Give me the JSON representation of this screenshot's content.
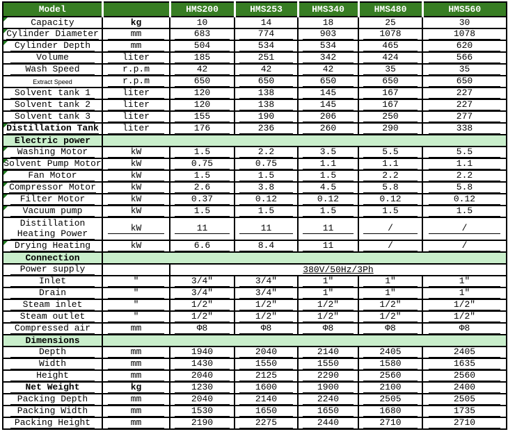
{
  "colors": {
    "header_bg": "#377d23",
    "header_text": "#ffffff",
    "section_bg": "#c9eecb",
    "flag": "#1f7a1f",
    "border": "#000000",
    "text": "#000000"
  },
  "table": {
    "header": {
      "cells": [
        "Model",
        "",
        "HMS200",
        "HMS253",
        "HMS340",
        "HMS480",
        "HMS560"
      ]
    },
    "rows": [
      {
        "label": "Capacity",
        "unit": "kg",
        "unit_bold": true,
        "values": [
          "10",
          "14",
          "18",
          "25",
          "30"
        ],
        "u": false,
        "flag": true
      },
      {
        "label": "Cylinder Diameter",
        "unit": "mm",
        "values": [
          "683",
          "774",
          "903",
          "1078",
          "1078"
        ],
        "u": true,
        "flag": true
      },
      {
        "label": "Cylinder Depth",
        "unit": "mm",
        "values": [
          "504",
          "534",
          "534",
          "465",
          "620"
        ],
        "u": true,
        "flag": true
      },
      {
        "label": "Volume",
        "unit": "liter",
        "values": [
          "185",
          "251",
          "342",
          "424",
          "566"
        ],
        "u": true
      },
      {
        "label": "Wash Speed",
        "unit": "r.p.m",
        "values": [
          "42",
          "42",
          "42",
          "35",
          "35"
        ],
        "u": true
      },
      {
        "label": "Extract Speed",
        "small_label": true,
        "unit": "r.p.m",
        "values": [
          "650",
          "650",
          "650",
          "650",
          "650"
        ],
        "u": true
      },
      {
        "label": "Solvent tank 1",
        "unit": "liter",
        "values": [
          "120",
          "138",
          "145",
          "167",
          "227"
        ],
        "u": true
      },
      {
        "label": "Solvent tank 2",
        "unit": "liter",
        "values": [
          "120",
          "138",
          "145",
          "167",
          "227"
        ],
        "u": true
      },
      {
        "label": "Solvent tank 3",
        "unit": "liter",
        "values": [
          "155",
          "190",
          "206",
          "250",
          "277"
        ],
        "u": true
      },
      {
        "label": "Distillation Tank",
        "label_bold": true,
        "unit": "liter",
        "values": [
          "176",
          "236",
          "260",
          "290",
          "338"
        ],
        "u": true,
        "flag": true
      },
      {
        "section": "Electric power"
      },
      {
        "label": "Washing Motor",
        "unit": "kW",
        "values": [
          "1.5",
          "2.2",
          "3.5",
          "5.5",
          "5.5"
        ],
        "u": true,
        "flag": true
      },
      {
        "label": "Solvent Pump Motor",
        "unit": "kW",
        "values": [
          "0.75",
          "0.75",
          "1.1",
          "1.1",
          "1.1"
        ],
        "u": true,
        "flag": true
      },
      {
        "label": "Fan Motor",
        "unit": "kW",
        "values": [
          "1.5",
          "1.5",
          "1.5",
          "2.2",
          "2.2"
        ],
        "u": true,
        "flag": true
      },
      {
        "label": "Compressor Motor",
        "unit": "kW",
        "values": [
          "2.6",
          "3.8",
          "4.5",
          "5.8",
          "5.8"
        ],
        "u": true,
        "flag": true
      },
      {
        "label": "Filter Motor",
        "unit": "kW",
        "values": [
          "0.37",
          "0.12",
          "0.12",
          "0.12",
          "0.12"
        ],
        "u": true,
        "flag": true
      },
      {
        "label": "Vacuum pump",
        "unit": "kW",
        "values": [
          "1.5",
          "1.5",
          "1.5",
          "1.5",
          "1.5"
        ],
        "u": true,
        "flag": true
      },
      {
        "label": "Distillation\nHeating Power",
        "unit": "kW",
        "values": [
          "11",
          "11",
          "11",
          "/",
          "/"
        ],
        "u": true,
        "tall": true
      },
      {
        "label": "Drying Heating",
        "unit": "kW",
        "values": [
          "6.6",
          "8.4",
          "11",
          "/",
          "/"
        ],
        "u": true,
        "flag": true
      },
      {
        "section": "Connection"
      },
      {
        "label": "Power supply",
        "unit": "",
        "value_span": "380V/50Hz/3Ph",
        "u": true
      },
      {
        "label": "Inlet",
        "unit": "″",
        "values": [
          "3/4″",
          "3/4″",
          "1″",
          "1″",
          "1″"
        ],
        "u": true
      },
      {
        "label": "Drain",
        "unit": "″",
        "values": [
          "3/4″",
          "3/4″",
          "1″",
          "1″",
          "1″"
        ],
        "u": true
      },
      {
        "label": "Steam inlet",
        "unit": "″",
        "values": [
          "1/2″",
          "1/2″",
          "1/2″",
          "1/2″",
          "1/2″"
        ],
        "u": true
      },
      {
        "label": "Steam outlet",
        "unit": "″",
        "values": [
          "1/2″",
          "1/2″",
          "1/2″",
          "1/2″",
          "1/2″"
        ],
        "u": true
      },
      {
        "label": "Compressed air",
        "unit": "mm",
        "values": [
          "Φ8",
          "Φ8",
          "Φ8",
          "Φ8",
          "Φ8"
        ],
        "u": true
      },
      {
        "section": "Dimensions"
      },
      {
        "label": "Depth",
        "unit": "mm",
        "values": [
          "1940",
          "2040",
          "2140",
          "2405",
          "2405"
        ],
        "u": true
      },
      {
        "label": "Width",
        "unit": "mm",
        "values": [
          "1430",
          "1550",
          "1550",
          "1580",
          "1635"
        ],
        "u": true
      },
      {
        "label": "Height",
        "unit": "mm",
        "values": [
          "2040",
          "2125",
          "2290",
          "2560",
          "2560"
        ],
        "u": true
      },
      {
        "label": "Net Weight",
        "label_bold": true,
        "unit": "kg",
        "unit_bold": true,
        "values": [
          "1230",
          "1600",
          "1900",
          "2100",
          "2400"
        ],
        "u": true
      },
      {
        "label": "Packing Depth",
        "unit": "mm",
        "values": [
          "2040",
          "2140",
          "2240",
          "2505",
          "2505"
        ],
        "u": true
      },
      {
        "label": "Packing Width",
        "unit": "mm",
        "values": [
          "1530",
          "1650",
          "1650",
          "1680",
          "1735"
        ],
        "u": true
      },
      {
        "label": "Packing Height",
        "unit": "mm",
        "values": [
          "2190",
          "2275",
          "2440",
          "2710",
          "2710"
        ],
        "u": true
      }
    ]
  }
}
